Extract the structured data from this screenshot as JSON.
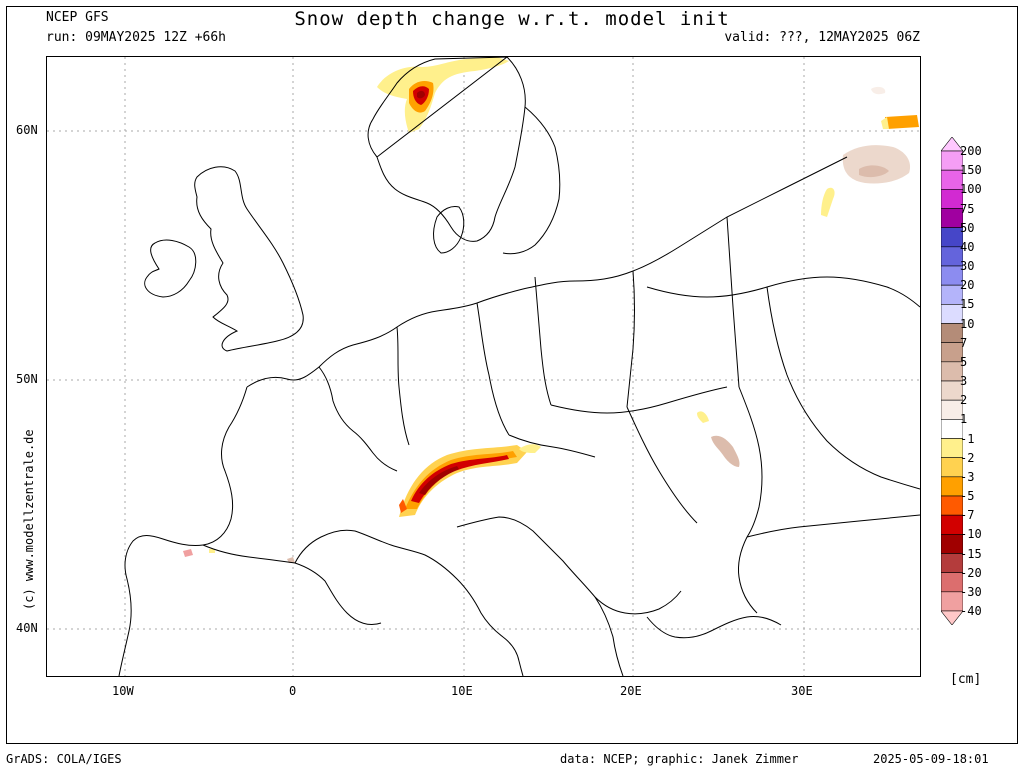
{
  "header": {
    "model": "NCEP GFS",
    "run": "run: 09MAY2025 12Z +66h",
    "title": "Snow depth change w.r.t. model init",
    "valid": "valid: ???, 12MAY2025 06Z"
  },
  "axes": {
    "lat_ticks": [
      "60N",
      "50N",
      "40N"
    ],
    "lon_ticks": [
      "10W",
      "0",
      "10E",
      "20E",
      "30E"
    ]
  },
  "copyright": "(c) www.modellzentrale.de",
  "legend": {
    "unit": "[cm]",
    "entries": [
      {
        "label": "200",
        "color": "#ffc8ff"
      },
      {
        "label": "150",
        "color": "#f59ef5"
      },
      {
        "label": "100",
        "color": "#e864e8"
      },
      {
        "label": "75",
        "color": "#d22ad2"
      },
      {
        "label": "50",
        "color": "#a000a0"
      },
      {
        "label": "40",
        "color": "#4646c8"
      },
      {
        "label": "30",
        "color": "#6464dc"
      },
      {
        "label": "20",
        "color": "#8c8cf0"
      },
      {
        "label": "15",
        "color": "#b4b4fa"
      },
      {
        "label": "10",
        "color": "#dcdcff"
      },
      {
        "label": "7",
        "color": "#b48c78"
      },
      {
        "label": "5",
        "color": "#c8a08c"
      },
      {
        "label": "3",
        "color": "#dcbcac"
      },
      {
        "label": "2",
        "color": "#ecd8cc"
      },
      {
        "label": "1",
        "color": "#f8eee8"
      },
      {
        "label": "-1",
        "color": "#ffffff"
      },
      {
        "label": "-2",
        "color": "#fff08c"
      },
      {
        "label": "-3",
        "color": "#ffd250"
      },
      {
        "label": "-5",
        "color": "#ffa000"
      },
      {
        "label": "-7",
        "color": "#ff5a00"
      },
      {
        "label": "-10",
        "color": "#d20000"
      },
      {
        "label": "-15",
        "color": "#a00000"
      },
      {
        "label": "-20",
        "color": "#b43c3c"
      },
      {
        "label": "-30",
        "color": "#dc6e6e"
      },
      {
        "label": "-40",
        "color": "#f0a0a0"
      },
      {
        "label": "",
        "color": "#ffc8c8"
      }
    ]
  },
  "footer": {
    "left": "GrADS: COLA/IGES",
    "center": "data: NCEP; graphic: Janek Zimmer",
    "right": "2025-05-09-18:01"
  },
  "colors": {
    "coast": "#000000",
    "grid": "#aaaaaa"
  }
}
